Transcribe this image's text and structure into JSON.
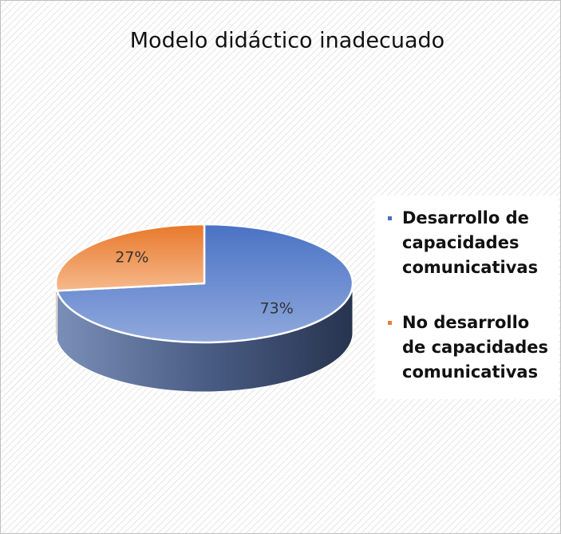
{
  "chart_data": {
    "type": "pie3d",
    "title": "Modelo didáctico inadecuado",
    "categories": [
      "Desarrollo de capacidades comunicativas",
      "No desarrollo de capacidades comunicativas"
    ],
    "values": [
      73,
      27
    ],
    "value_labels": [
      "73%",
      "27%"
    ],
    "colors": [
      "#4472c4",
      "#ed7d31"
    ],
    "legend": "right"
  }
}
